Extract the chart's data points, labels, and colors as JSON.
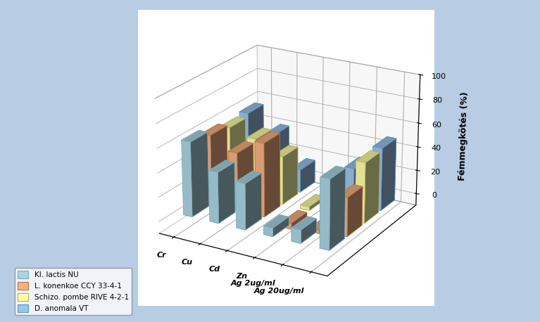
{
  "categories": [
    "Cr",
    "Cu",
    "Cd",
    "Zn",
    "Ag 2ug/ml",
    "Ag 20ug/ml"
  ],
  "series_labels": [
    "Kl. lactis NU",
    "L. konenkoe CCY 33-4-1",
    "Schizo. pombe RIVE 4-2-1",
    "D. anomala VT"
  ],
  "series_colors": [
    "#aad4e0",
    "#f4b183",
    "#ffffaa",
    "#9dc3e6"
  ],
  "series_edge_colors": [
    "#7aafc0",
    "#c07040",
    "#b0b060",
    "#5a96c8"
  ],
  "values": [
    [
      62,
      42,
      38,
      7,
      11,
      57
    ],
    [
      58,
      48,
      61,
      -5,
      -3,
      32
    ],
    [
      55,
      50,
      40,
      3,
      -5,
      50
    ],
    [
      58,
      44,
      19,
      -4,
      30,
      52
    ]
  ],
  "ylabel": "Fémmegkötés (%)",
  "ylim": [
    -10,
    100
  ],
  "yticks": [
    0,
    20,
    40,
    60,
    80,
    100
  ],
  "background_color": "#b8cce4",
  "plot_background": "#ffffff",
  "bar_width": 0.6,
  "bar_depth": 0.6,
  "elev": 22,
  "azim": -60
}
